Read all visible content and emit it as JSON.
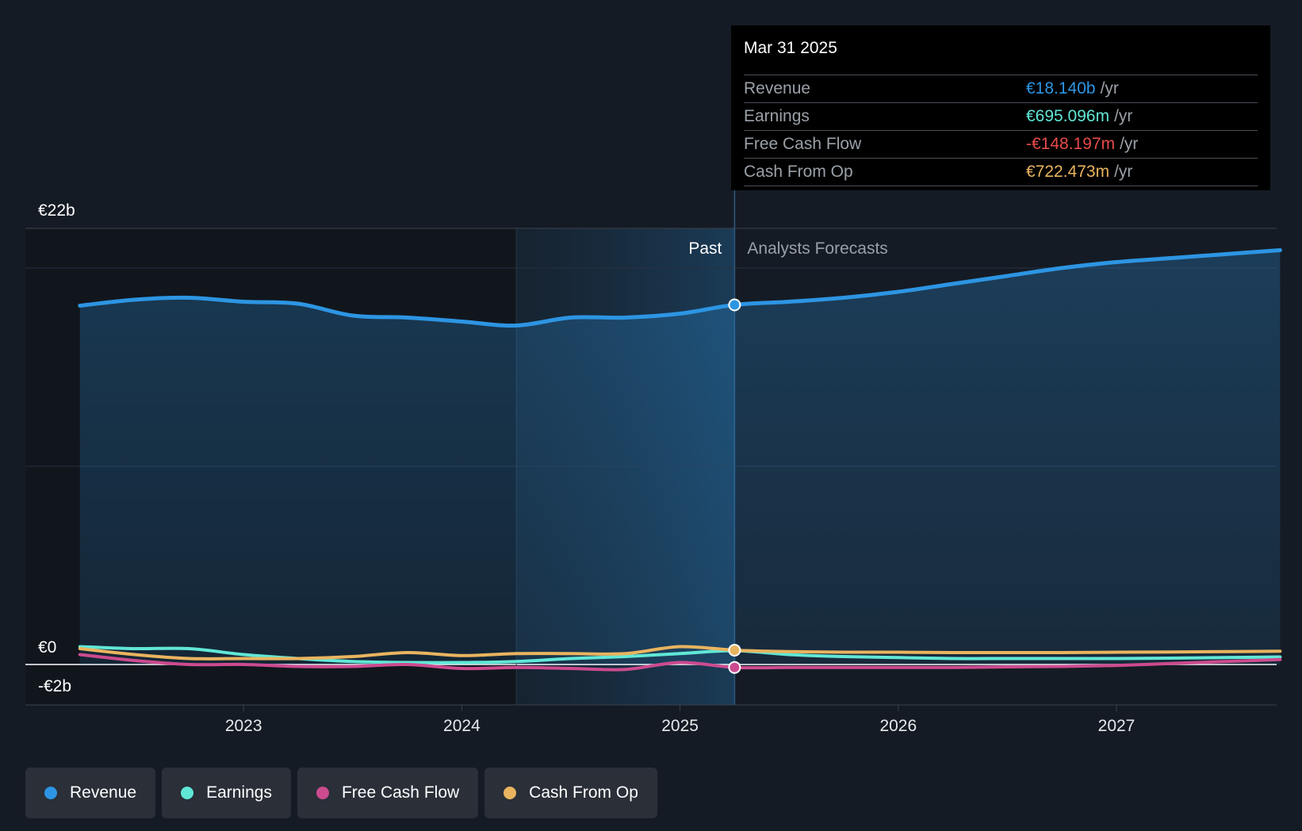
{
  "chart_data": {
    "type": "line",
    "title": "",
    "xlabel": "",
    "ylabel": "",
    "ylim": [
      -2,
      22
    ],
    "y_unit": "€b",
    "y_tick_labels": [
      "€22b",
      "€0",
      "-€2b"
    ],
    "x_ticks": [
      {
        "x": 2023.0,
        "label": "2023"
      },
      {
        "x": 2024.0,
        "label": "2024"
      },
      {
        "x": 2025.0,
        "label": "2025"
      },
      {
        "x": 2026.0,
        "label": "2026"
      },
      {
        "x": 2027.0,
        "label": "2027"
      }
    ],
    "xlim": [
      2022.0,
      2027.75
    ],
    "past_label": "Past",
    "forecast_label": "Analysts Forecasts",
    "divider_x": 2025.25,
    "highlight_start_x": 2024.25,
    "series": [
      {
        "name": "Revenue",
        "color": "#2d95e3",
        "points": [
          [
            2022.25,
            18.1
          ],
          [
            2022.5,
            18.4
          ],
          [
            2022.75,
            18.5
          ],
          [
            2023.0,
            18.3
          ],
          [
            2023.25,
            18.2
          ],
          [
            2023.5,
            17.6
          ],
          [
            2023.75,
            17.5
          ],
          [
            2024.0,
            17.3
          ],
          [
            2024.25,
            17.1
          ],
          [
            2024.5,
            17.5
          ],
          [
            2024.75,
            17.5
          ],
          [
            2025.0,
            17.7
          ],
          [
            2025.25,
            18.14
          ],
          [
            2025.5,
            18.3
          ],
          [
            2025.75,
            18.5
          ],
          [
            2026.0,
            18.8
          ],
          [
            2026.25,
            19.2
          ],
          [
            2026.5,
            19.6
          ],
          [
            2026.75,
            20.0
          ],
          [
            2027.0,
            20.3
          ],
          [
            2027.25,
            20.5
          ],
          [
            2027.5,
            20.7
          ],
          [
            2027.75,
            20.9
          ]
        ]
      },
      {
        "name": "Earnings",
        "color": "#61e7d6",
        "points": [
          [
            2022.25,
            0.9
          ],
          [
            2022.5,
            0.8
          ],
          [
            2022.75,
            0.8
          ],
          [
            2023.0,
            0.5
          ],
          [
            2023.25,
            0.3
          ],
          [
            2023.5,
            0.15
          ],
          [
            2023.75,
            0.1
          ],
          [
            2024.0,
            0.1
          ],
          [
            2024.25,
            0.15
          ],
          [
            2024.5,
            0.3
          ],
          [
            2024.75,
            0.4
          ],
          [
            2025.0,
            0.55
          ],
          [
            2025.25,
            0.695
          ],
          [
            2025.5,
            0.5
          ],
          [
            2025.75,
            0.4
          ],
          [
            2026.0,
            0.35
          ],
          [
            2026.25,
            0.3
          ],
          [
            2026.5,
            0.3
          ],
          [
            2026.75,
            0.3
          ],
          [
            2027.0,
            0.3
          ],
          [
            2027.25,
            0.32
          ],
          [
            2027.5,
            0.35
          ],
          [
            2027.75,
            0.38
          ]
        ]
      },
      {
        "name": "Free Cash Flow",
        "color": "#cc4b8f",
        "points": [
          [
            2022.25,
            0.5
          ],
          [
            2022.5,
            0.2
          ],
          [
            2022.75,
            0.0
          ],
          [
            2023.0,
            0.0
          ],
          [
            2023.25,
            -0.1
          ],
          [
            2023.5,
            -0.1
          ],
          [
            2023.75,
            0.0
          ],
          [
            2024.0,
            -0.2
          ],
          [
            2024.25,
            -0.15
          ],
          [
            2024.5,
            -0.2
          ],
          [
            2024.75,
            -0.25
          ],
          [
            2025.0,
            0.1
          ],
          [
            2025.25,
            -0.148
          ],
          [
            2025.5,
            -0.15
          ],
          [
            2025.75,
            -0.15
          ],
          [
            2026.0,
            -0.15
          ],
          [
            2026.25,
            -0.15
          ],
          [
            2026.5,
            -0.12
          ],
          [
            2026.75,
            -0.1
          ],
          [
            2027.0,
            -0.05
          ],
          [
            2027.25,
            0.05
          ],
          [
            2027.5,
            0.15
          ],
          [
            2027.75,
            0.25
          ]
        ]
      },
      {
        "name": "Cash From Op",
        "color": "#e9b45f",
        "points": [
          [
            2022.25,
            0.8
          ],
          [
            2022.5,
            0.5
          ],
          [
            2022.75,
            0.3
          ],
          [
            2023.0,
            0.3
          ],
          [
            2023.25,
            0.3
          ],
          [
            2023.5,
            0.4
          ],
          [
            2023.75,
            0.6
          ],
          [
            2024.0,
            0.45
          ],
          [
            2024.25,
            0.55
          ],
          [
            2024.5,
            0.55
          ],
          [
            2024.75,
            0.55
          ],
          [
            2025.0,
            0.9
          ],
          [
            2025.25,
            0.722
          ],
          [
            2025.5,
            0.65
          ],
          [
            2025.75,
            0.62
          ],
          [
            2026.0,
            0.62
          ],
          [
            2026.25,
            0.6
          ],
          [
            2026.5,
            0.6
          ],
          [
            2026.75,
            0.6
          ],
          [
            2027.0,
            0.62
          ],
          [
            2027.25,
            0.63
          ],
          [
            2027.5,
            0.65
          ],
          [
            2027.75,
            0.67
          ]
        ]
      }
    ],
    "highlight_points": [
      {
        "series": "Revenue",
        "x": 2025.25,
        "y": 18.14
      },
      {
        "series": "Cash From Op",
        "x": 2025.25,
        "y": 0.722
      },
      {
        "series": "Free Cash Flow",
        "x": 2025.25,
        "y": -0.148
      }
    ]
  },
  "tooltip": {
    "date": "Mar 31 2025",
    "unit": "/yr",
    "rows": [
      {
        "label": "Revenue",
        "value": "€18.140b",
        "color": "#2d95e3"
      },
      {
        "label": "Earnings",
        "value": "€695.096m",
        "color": "#61e7d6"
      },
      {
        "label": "Free Cash Flow",
        "value": "-€148.197m",
        "color": "#e64a4a"
      },
      {
        "label": "Cash From Op",
        "value": "€722.473m",
        "color": "#e9b45f"
      }
    ]
  },
  "legend": [
    {
      "label": "Revenue",
      "color": "#2d95e3"
    },
    {
      "label": "Earnings",
      "color": "#61e7d6"
    },
    {
      "label": "Free Cash Flow",
      "color": "#cc4b8f"
    },
    {
      "label": "Cash From Op",
      "color": "#e9b45f"
    }
  ]
}
